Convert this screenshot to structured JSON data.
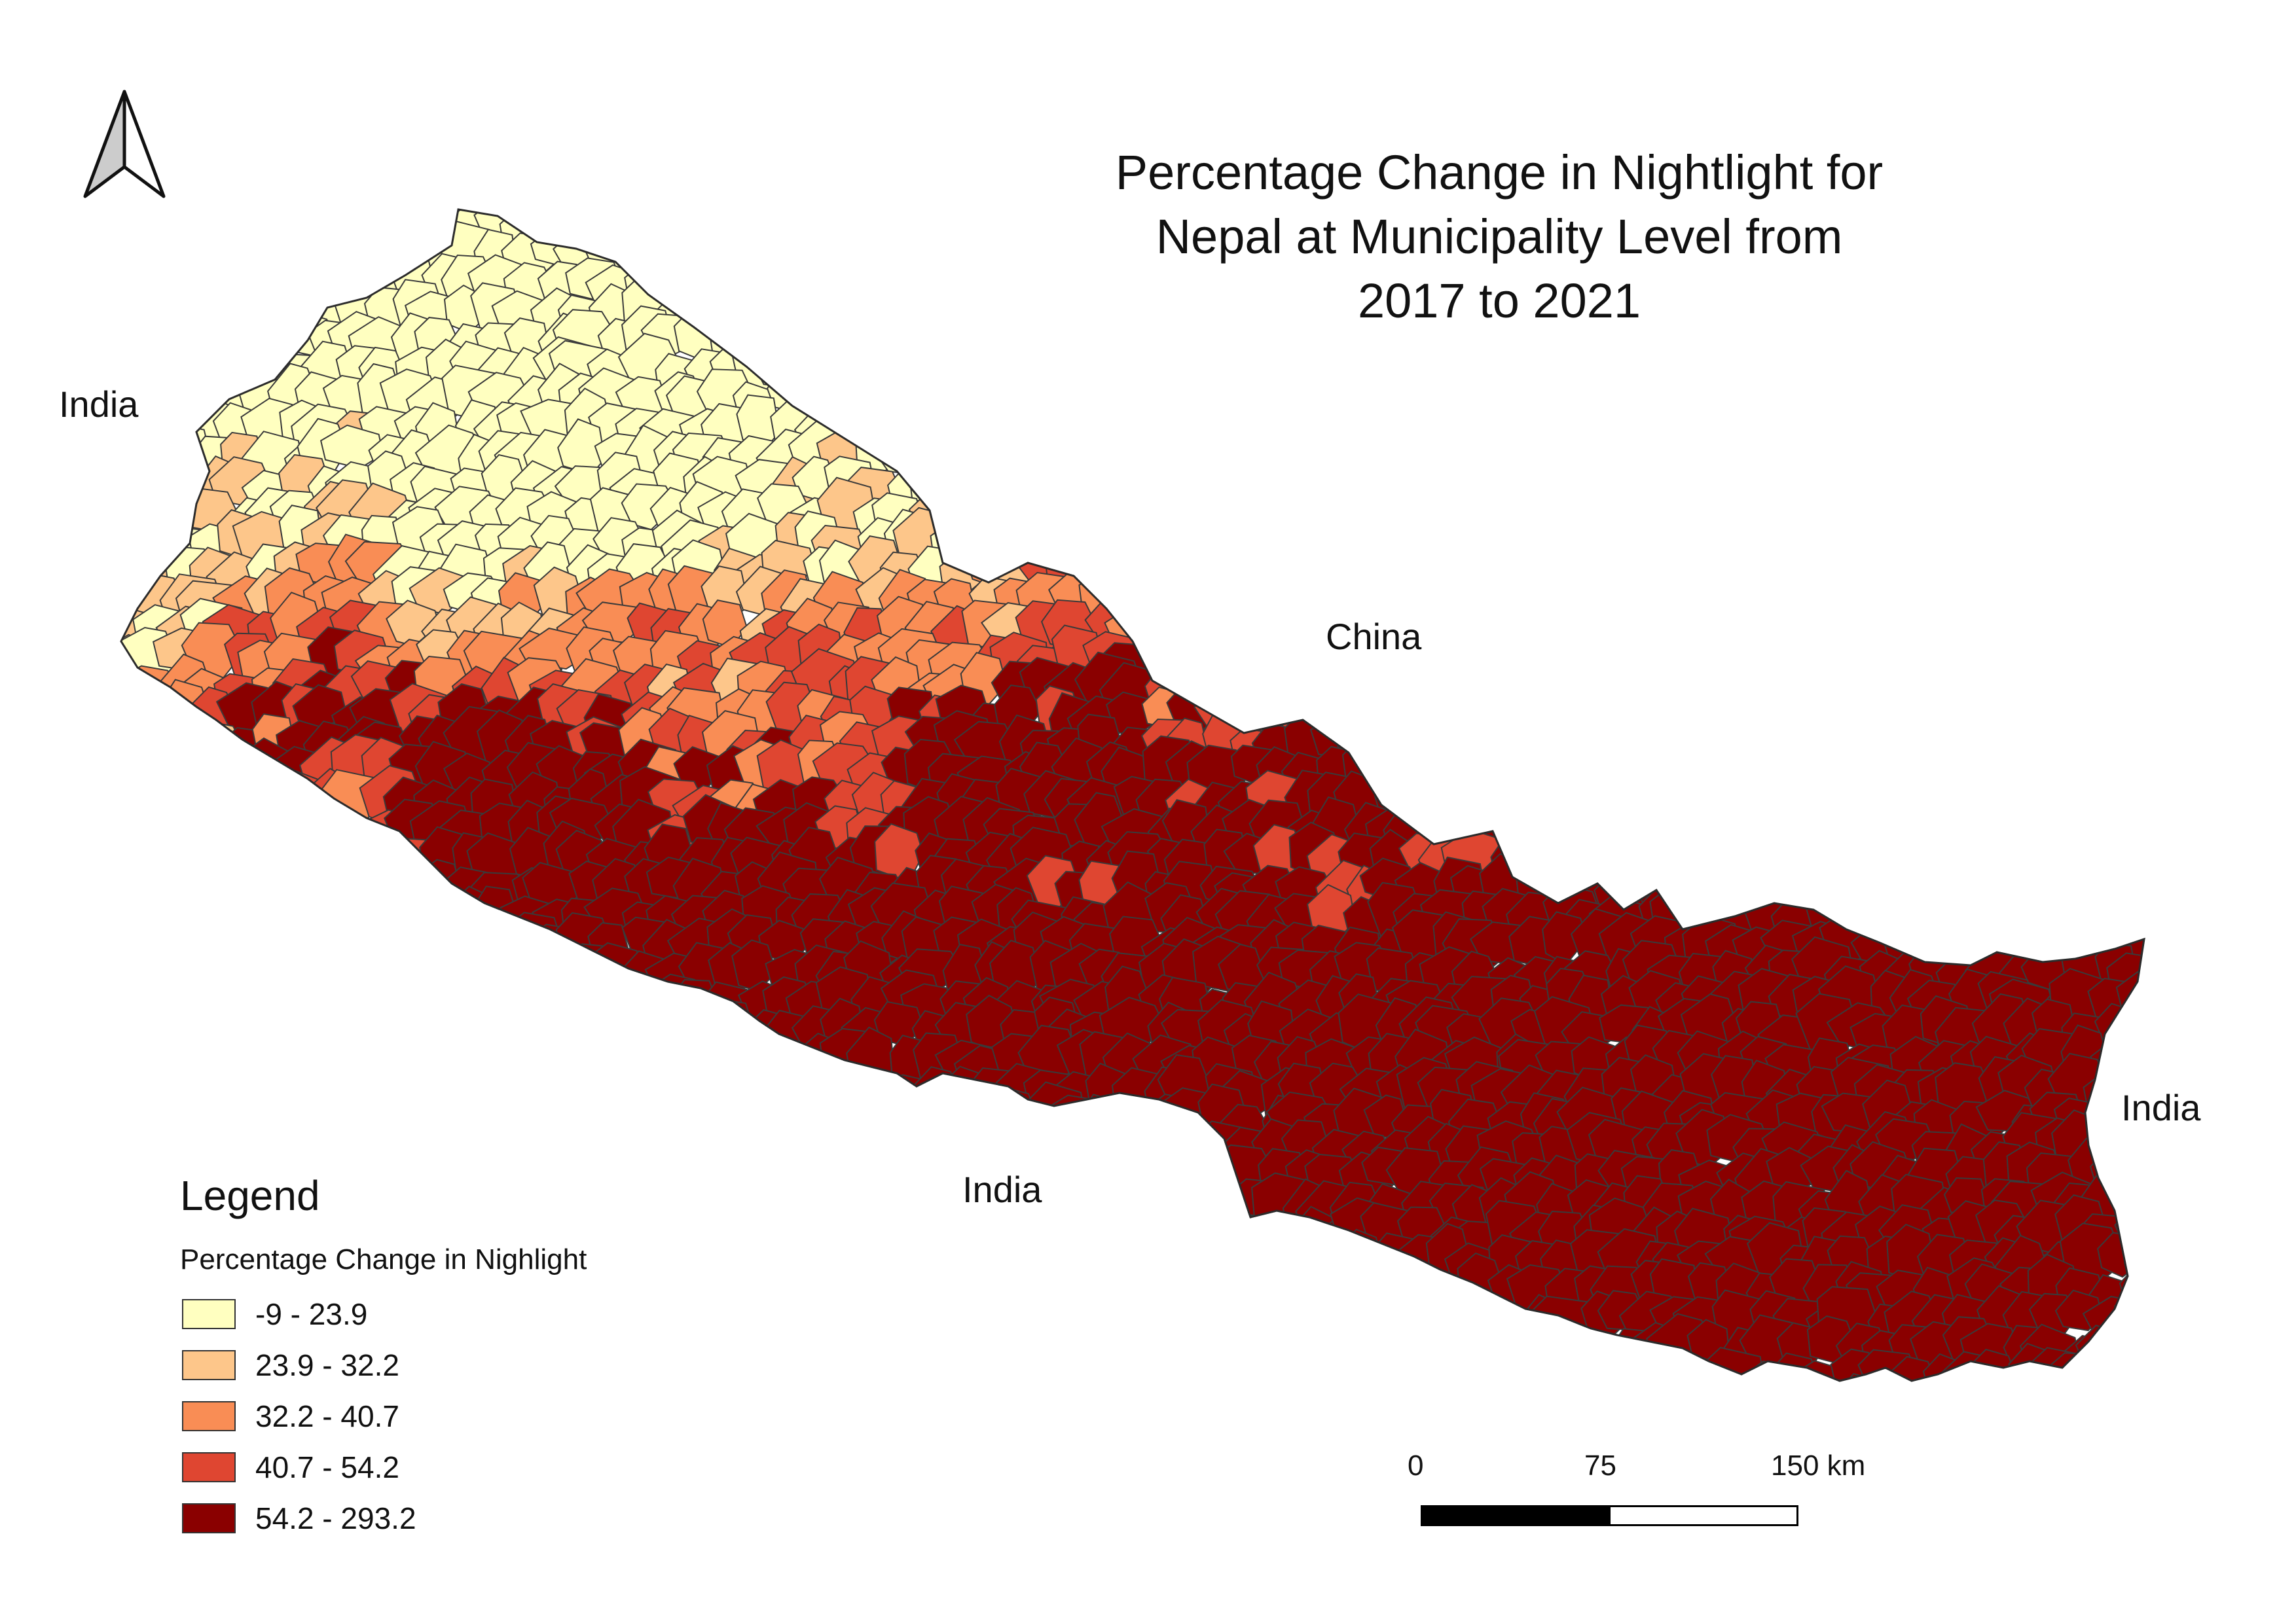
{
  "title": "Percentage Change in Nightlight for\nNepal at Municipality Level from\n2017 to 2021",
  "neighbors": {
    "india_west": "India",
    "china": "China",
    "india_south": "India",
    "india_east": "India"
  },
  "legend": {
    "title": "Legend",
    "subtitle": "Percentage Change in Nighlight",
    "classes": [
      {
        "label": "-9 - 23.9",
        "color": "#ffffc0"
      },
      {
        "label": "23.9 - 32.2",
        "color": "#fdc68a"
      },
      {
        "label": "32.2 - 40.7",
        "color": "#f98d55"
      },
      {
        "label": "40.7 - 54.2",
        "color": "#df4631"
      },
      {
        "label": "54.2 - 293.2",
        "color": "#8a0000"
      }
    ]
  },
  "scale_bar": {
    "labels": [
      "0",
      "75",
      "150 km"
    ]
  },
  "icons": {
    "north_arrow": "north-arrow-icon"
  },
  "colors": {
    "boundary": "#3a3a3a",
    "background": "#ffffff"
  }
}
